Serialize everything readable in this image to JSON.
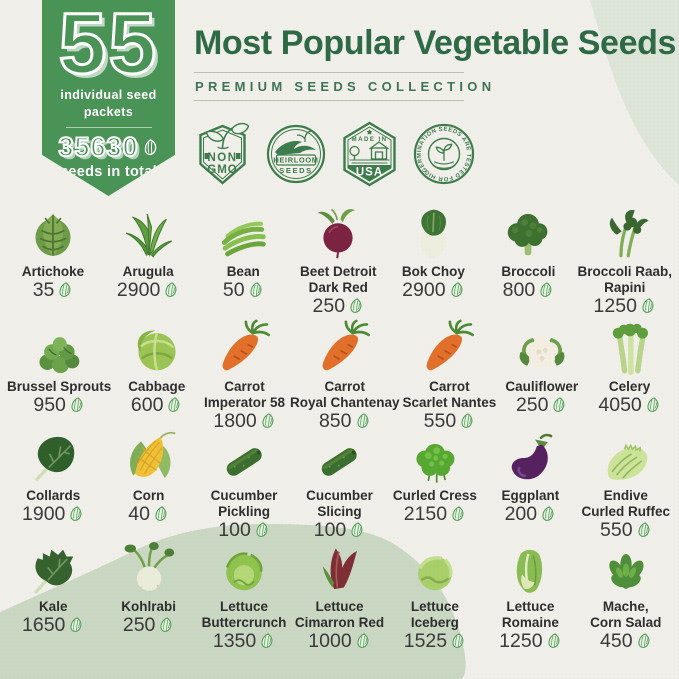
{
  "banner": {
    "big_number": "55",
    "subtitle": "individual seed packets",
    "total_number": "35630",
    "total_label": "seeds in total"
  },
  "header": {
    "title": "Most Popular Vegetable Seeds",
    "subtitle": "PREMIUM SEEDS COLLECTION"
  },
  "badges": [
    {
      "id": "non-gmo",
      "lines": [
        "NON",
        "GMO"
      ]
    },
    {
      "id": "heirloom",
      "lines": [
        "HEIRLOOM",
        "SEEDS"
      ]
    },
    {
      "id": "made-in-usa",
      "top": "MADE IN",
      "main": "USA"
    },
    {
      "id": "germination",
      "circular_text": "GERMINATION  SEEDS ARE  TESTED  FOR HIGH"
    }
  ],
  "colors": {
    "bg": "#f1efe9",
    "banner_green": "#4a9356",
    "title_green": "#2d6a45",
    "badge_green": "#3d7c4c",
    "text_dark": "#2e2e2e",
    "leaf_green": "#57a05c",
    "blob_light": "#dde4d8",
    "blob_dark": "#cad7c3"
  },
  "grid": {
    "rows": [
      [
        {
          "name": "Artichoke",
          "lines": [
            "Artichoke"
          ],
          "count": "35",
          "icon": "artichoke"
        },
        {
          "name": "Arugula",
          "lines": [
            "Arugula"
          ],
          "count": "2900",
          "icon": "arugula"
        },
        {
          "name": "Bean",
          "lines": [
            "Bean"
          ],
          "count": "50",
          "icon": "bean"
        },
        {
          "name": "Beet Detroit Dark Red",
          "lines": [
            "Beet Detroit",
            "Dark Red"
          ],
          "count": "250",
          "icon": "beet"
        },
        {
          "name": "Bok Choy",
          "lines": [
            "Bok Choy"
          ],
          "count": "2900",
          "icon": "bokchoy"
        },
        {
          "name": "Broccoli",
          "lines": [
            "Broccoli"
          ],
          "count": "800",
          "icon": "broccoli"
        },
        {
          "name": "Broccoli Raab, Rapini",
          "lines": [
            "Broccoli Raab,",
            "Rapini"
          ],
          "count": "1250",
          "icon": "rapini"
        }
      ],
      [
        {
          "name": "Brussel Sprouts",
          "lines": [
            "Brussel Sprouts"
          ],
          "count": "950",
          "icon": "sprouts"
        },
        {
          "name": "Cabbage",
          "lines": [
            "Cabbage"
          ],
          "count": "600",
          "icon": "cabbage"
        },
        {
          "name": "Carrot Imperator 58",
          "lines": [
            "Carrot",
            "Imperator 58"
          ],
          "count": "1800",
          "icon": "carrot"
        },
        {
          "name": "Carrot Royal Chantenay",
          "lines": [
            "Carrot",
            "Royal Chantenay"
          ],
          "count": "850",
          "icon": "carrot"
        },
        {
          "name": "Carrot Scarlet Nantes",
          "lines": [
            "Carrot",
            "Scarlet Nantes"
          ],
          "count": "550",
          "icon": "carrot"
        },
        {
          "name": "Cauliflower",
          "lines": [
            "Cauliflower"
          ],
          "count": "250",
          "icon": "cauliflower"
        },
        {
          "name": "Celery",
          "lines": [
            "Celery"
          ],
          "count": "4050",
          "icon": "celery"
        }
      ],
      [
        {
          "name": "Collards",
          "lines": [
            "Collards"
          ],
          "count": "1900",
          "icon": "collards"
        },
        {
          "name": "Corn",
          "lines": [
            "Corn"
          ],
          "count": "40",
          "icon": "corn"
        },
        {
          "name": "Cucumber Pickling",
          "lines": [
            "Cucumber",
            "Pickling"
          ],
          "count": "100",
          "icon": "cucumber"
        },
        {
          "name": "Cucumber Slicing",
          "lines": [
            "Cucumber",
            "Slicing"
          ],
          "count": "100",
          "icon": "cucumber"
        },
        {
          "name": "Curled Cress",
          "lines": [
            "Curled Cress"
          ],
          "count": "2150",
          "icon": "cress"
        },
        {
          "name": "Eggplant",
          "lines": [
            "Eggplant"
          ],
          "count": "200",
          "icon": "eggplant"
        },
        {
          "name": "Endive Curled Ruffec",
          "lines": [
            "Endive",
            "Curled Ruffec"
          ],
          "count": "550",
          "icon": "endive"
        }
      ],
      [
        {
          "name": "Kale",
          "lines": [
            "Kale"
          ],
          "count": "1650",
          "icon": "kale"
        },
        {
          "name": "Kohlrabi",
          "lines": [
            "Kohlrabi"
          ],
          "count": "250",
          "icon": "kohlrabi"
        },
        {
          "name": "Lettuce Buttercrunch",
          "lines": [
            "Lettuce",
            "Buttercrunch"
          ],
          "count": "1350",
          "icon": "lettuce-butter"
        },
        {
          "name": "Lettuce Cimarron Red",
          "lines": [
            "Lettuce",
            "Cimarron Red"
          ],
          "count": "1000",
          "icon": "lettuce-red"
        },
        {
          "name": "Lettuce Iceberg",
          "lines": [
            "Lettuce",
            "Iceberg"
          ],
          "count": "1525",
          "icon": "iceberg"
        },
        {
          "name": "Lettuce Romaine",
          "lines": [
            "Lettuce",
            "Romaine"
          ],
          "count": "1250",
          "icon": "romaine"
        },
        {
          "name": "Mache, Corn Salad",
          "lines": [
            "Mache,",
            "Corn Salad"
          ],
          "count": "450",
          "icon": "mache"
        }
      ]
    ]
  }
}
